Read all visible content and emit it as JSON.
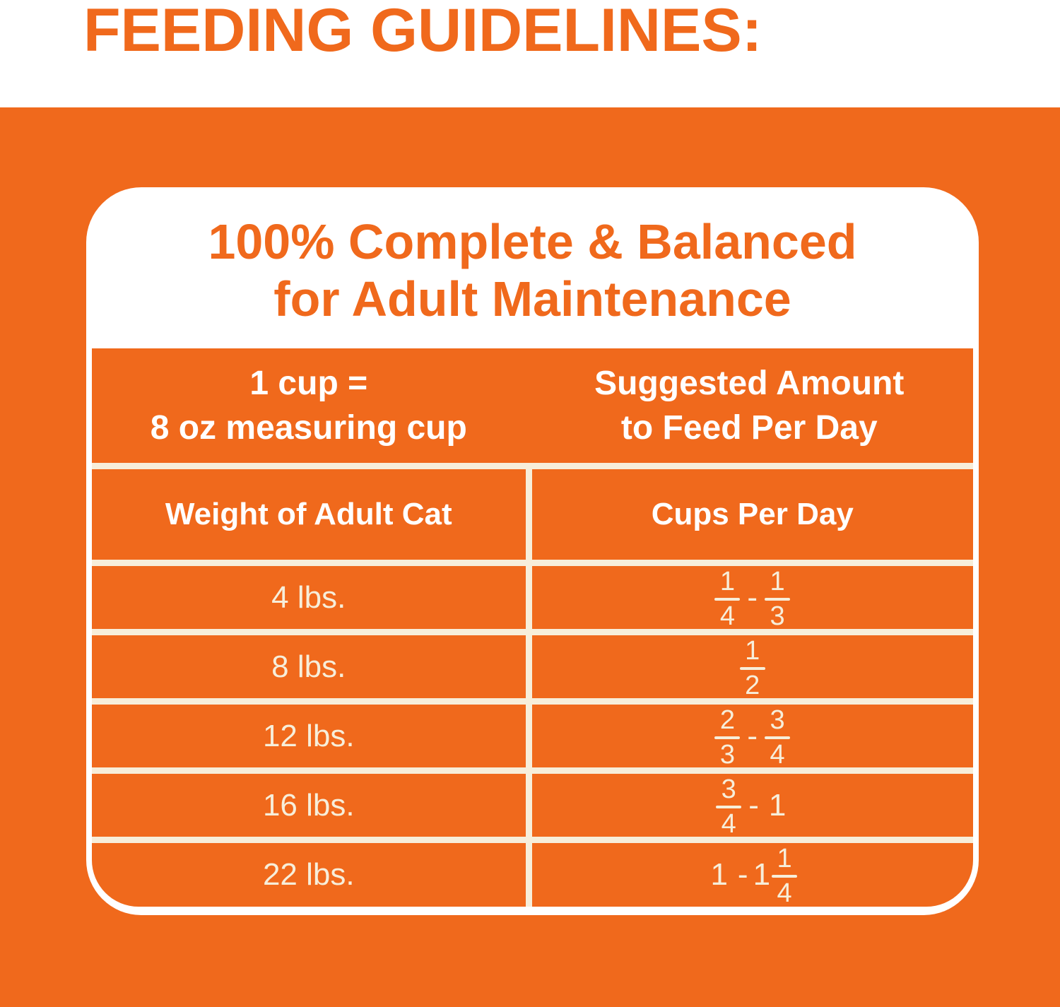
{
  "page": {
    "title": "FEEDING GUIDELINES:"
  },
  "card": {
    "title_line1": "100% Complete & Balanced",
    "title_line2": "for Adult Maintenance",
    "header": {
      "left_line1": "1 cup =",
      "left_line2": "8 oz measuring cup",
      "right_line1": "Suggested Amount",
      "right_line2": "to Feed Per Day"
    },
    "columns": {
      "left": "Weight of Adult Cat",
      "right": "Cups Per Day"
    },
    "rows": [
      {
        "weight": "4 lbs.",
        "cups_text": "1/4 - 1/3",
        "cups": [
          {
            "frac": [
              1,
              4
            ]
          },
          {
            "text": "-"
          },
          {
            "frac": [
              1,
              3
            ]
          }
        ]
      },
      {
        "weight": "8 lbs.",
        "cups_text": "1/2",
        "cups": [
          {
            "frac": [
              1,
              2
            ]
          }
        ]
      },
      {
        "weight": "12 lbs.",
        "cups_text": "2/3 - 3/4",
        "cups": [
          {
            "frac": [
              2,
              3
            ]
          },
          {
            "text": "-"
          },
          {
            "frac": [
              3,
              4
            ]
          }
        ]
      },
      {
        "weight": "16 lbs.",
        "cups_text": "3/4 - 1",
        "cups": [
          {
            "frac": [
              3,
              4
            ]
          },
          {
            "text": "-"
          },
          {
            "text": "1"
          }
        ]
      },
      {
        "weight": "22 lbs.",
        "cups_text": "1 - 1 1/4",
        "cups": [
          {
            "text": "1"
          },
          {
            "text": "-"
          },
          {
            "mixed": [
              "1",
              [
                1,
                4
              ]
            ]
          }
        ]
      }
    ]
  },
  "colors": {
    "orange": "#F0691C",
    "cream": "#F7EEDA",
    "white": "#FFFFFF"
  }
}
